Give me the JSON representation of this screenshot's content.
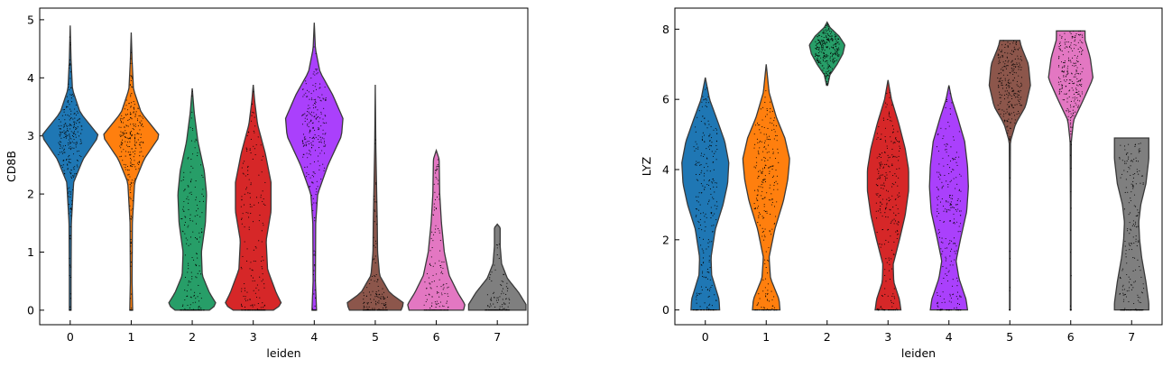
{
  "chart_data": [
    {
      "type": "violin",
      "xlabel": "leiden",
      "ylabel": "CD8B",
      "categories": [
        "0",
        "1",
        "2",
        "3",
        "4",
        "5",
        "6",
        "7"
      ],
      "yticks": [
        "0",
        "1",
        "2",
        "3",
        "4",
        "5"
      ],
      "ylim": [
        -0.25,
        5.2
      ],
      "colors": [
        "#1f77b4",
        "#ff7f0e",
        "#279e68",
        "#d62728",
        "#aa40fc",
        "#8c564b",
        "#e377c2",
        "#7f7f7f"
      ],
      "series": [
        {
          "category": "0",
          "max": 4.9,
          "zero_fraction": 0.03,
          "density": [
            [
              0.0,
              0.03
            ],
            [
              0.5,
              0.03
            ],
            [
              1.5,
              0.04
            ],
            [
              2.2,
              0.12
            ],
            [
              2.6,
              0.45
            ],
            [
              3.0,
              1.0
            ],
            [
              3.4,
              0.35
            ],
            [
              3.8,
              0.08
            ],
            [
              4.3,
              0.03
            ],
            [
              4.9,
              0.0
            ]
          ]
        },
        {
          "category": "1",
          "max": 4.78,
          "zero_fraction": 0.04,
          "density": [
            [
              0.0,
              0.05
            ],
            [
              0.5,
              0.03
            ],
            [
              1.5,
              0.04
            ],
            [
              2.2,
              0.12
            ],
            [
              2.6,
              0.45
            ],
            [
              3.0,
              1.0
            ],
            [
              3.4,
              0.35
            ],
            [
              3.8,
              0.08
            ],
            [
              4.3,
              0.03
            ],
            [
              4.78,
              0.0
            ]
          ]
        },
        {
          "category": "2",
          "max": 3.82,
          "zero_fraction": 0.45,
          "density": [
            [
              0.0,
              0.6
            ],
            [
              0.1,
              0.85
            ],
            [
              0.3,
              0.6
            ],
            [
              0.6,
              0.35
            ],
            [
              1.0,
              0.32
            ],
            [
              1.5,
              0.46
            ],
            [
              2.0,
              0.5
            ],
            [
              2.4,
              0.42
            ],
            [
              2.9,
              0.2
            ],
            [
              3.4,
              0.07
            ],
            [
              3.82,
              0.0
            ]
          ]
        },
        {
          "category": "3",
          "max": 3.88,
          "zero_fraction": 0.4,
          "density": [
            [
              0.0,
              0.7
            ],
            [
              0.1,
              1.0
            ],
            [
              0.3,
              0.8
            ],
            [
              0.7,
              0.5
            ],
            [
              1.2,
              0.45
            ],
            [
              1.7,
              0.62
            ],
            [
              2.2,
              0.62
            ],
            [
              2.7,
              0.42
            ],
            [
              3.2,
              0.15
            ],
            [
              3.6,
              0.05
            ],
            [
              3.88,
              0.0
            ]
          ]
        },
        {
          "category": "4",
          "max": 4.95,
          "zero_fraction": 0.08,
          "density": [
            [
              0.0,
              0.08
            ],
            [
              0.5,
              0.04
            ],
            [
              1.5,
              0.05
            ],
            [
              2.0,
              0.12
            ],
            [
              2.5,
              0.48
            ],
            [
              3.0,
              0.95
            ],
            [
              3.3,
              1.0
            ],
            [
              3.7,
              0.65
            ],
            [
              4.1,
              0.2
            ],
            [
              4.5,
              0.04
            ],
            [
              4.95,
              0.0
            ]
          ]
        },
        {
          "category": "5",
          "max": 3.88,
          "zero_fraction": 0.6,
          "density": [
            [
              0.0,
              0.9
            ],
            [
              0.12,
              1.0
            ],
            [
              0.3,
              0.5
            ],
            [
              0.6,
              0.15
            ],
            [
              1.0,
              0.08
            ],
            [
              1.5,
              0.07
            ],
            [
              2.0,
              0.05
            ],
            [
              2.8,
              0.02
            ],
            [
              3.88,
              0.0
            ]
          ]
        },
        {
          "category": "6",
          "max": 2.75,
          "zero_fraction": 0.5,
          "density": [
            [
              0.0,
              0.95
            ],
            [
              0.1,
              1.0
            ],
            [
              0.3,
              0.75
            ],
            [
              0.6,
              0.45
            ],
            [
              1.0,
              0.28
            ],
            [
              1.5,
              0.18
            ],
            [
              2.0,
              0.12
            ],
            [
              2.6,
              0.1
            ],
            [
              2.75,
              0.0
            ]
          ]
        },
        {
          "category": "7",
          "max": 1.48,
          "zero_fraction": 0.7,
          "density": [
            [
              0.0,
              1.0
            ],
            [
              0.1,
              1.0
            ],
            [
              0.3,
              0.75
            ],
            [
              0.55,
              0.35
            ],
            [
              0.8,
              0.15
            ],
            [
              1.1,
              0.1
            ],
            [
              1.42,
              0.1
            ],
            [
              1.48,
              0.0
            ]
          ]
        }
      ]
    },
    {
      "type": "violin",
      "xlabel": "leiden",
      "ylabel": "LYZ",
      "categories": [
        "0",
        "1",
        "2",
        "3",
        "4",
        "5",
        "6",
        "7"
      ],
      "yticks": [
        "0",
        "2",
        "4",
        "6",
        "8"
      ],
      "ylim": [
        -0.42,
        8.6
      ],
      "colors": [
        "#1f77b4",
        "#ff7f0e",
        "#279e68",
        "#d62728",
        "#aa40fc",
        "#8c564b",
        "#e377c2",
        "#7f7f7f"
      ],
      "series": [
        {
          "category": "0",
          "max": 6.62,
          "zero_fraction": 0.1,
          "density": [
            [
              0.0,
              0.5
            ],
            [
              0.3,
              0.48
            ],
            [
              1.0,
              0.22
            ],
            [
              1.5,
              0.2
            ],
            [
              2.3,
              0.35
            ],
            [
              3.0,
              0.62
            ],
            [
              3.6,
              0.78
            ],
            [
              4.2,
              0.82
            ],
            [
              4.8,
              0.68
            ],
            [
              5.4,
              0.42
            ],
            [
              6.0,
              0.15
            ],
            [
              6.62,
              0.0
            ]
          ]
        },
        {
          "category": "1",
          "max": 7.0,
          "zero_fraction": 0.1,
          "density": [
            [
              0.0,
              0.48
            ],
            [
              0.3,
              0.45
            ],
            [
              0.9,
              0.15
            ],
            [
              1.5,
              0.1
            ],
            [
              2.3,
              0.3
            ],
            [
              3.1,
              0.6
            ],
            [
              3.7,
              0.75
            ],
            [
              4.3,
              0.82
            ],
            [
              4.9,
              0.65
            ],
            [
              5.5,
              0.35
            ],
            [
              6.2,
              0.1
            ],
            [
              7.0,
              0.0
            ]
          ]
        },
        {
          "category": "2",
          "min": 6.4,
          "max": 8.2,
          "zero_fraction": 0.0,
          "density": [
            [
              6.4,
              0.02
            ],
            [
              6.7,
              0.1
            ],
            [
              7.0,
              0.35
            ],
            [
              7.3,
              0.55
            ],
            [
              7.55,
              0.62
            ],
            [
              7.8,
              0.42
            ],
            [
              8.05,
              0.1
            ],
            [
              8.2,
              0.0
            ]
          ]
        },
        {
          "category": "3",
          "max": 6.55,
          "zero_fraction": 0.08,
          "density": [
            [
              0.0,
              0.45
            ],
            [
              0.3,
              0.4
            ],
            [
              0.8,
              0.2
            ],
            [
              1.3,
              0.18
            ],
            [
              2.0,
              0.4
            ],
            [
              2.7,
              0.6
            ],
            [
              3.4,
              0.72
            ],
            [
              4.0,
              0.72
            ],
            [
              4.6,
              0.6
            ],
            [
              5.3,
              0.38
            ],
            [
              6.0,
              0.12
            ],
            [
              6.55,
              0.0
            ]
          ]
        },
        {
          "category": "4",
          "max": 6.4,
          "zero_fraction": 0.12,
          "density": [
            [
              0.0,
              0.65
            ],
            [
              0.3,
              0.6
            ],
            [
              0.9,
              0.35
            ],
            [
              1.4,
              0.25
            ],
            [
              2.0,
              0.4
            ],
            [
              2.8,
              0.62
            ],
            [
              3.5,
              0.68
            ],
            [
              4.1,
              0.65
            ],
            [
              4.8,
              0.55
            ],
            [
              5.5,
              0.3
            ],
            [
              6.0,
              0.1
            ],
            [
              6.4,
              0.0
            ]
          ]
        },
        {
          "category": "5",
          "max": 7.68,
          "zero_fraction": 0.01,
          "density": [
            [
              0.0,
              0.01
            ],
            [
              1.0,
              0.01
            ],
            [
              3.0,
              0.01
            ],
            [
              4.8,
              0.02
            ],
            [
              5.3,
              0.2
            ],
            [
              5.8,
              0.55
            ],
            [
              6.4,
              0.72
            ],
            [
              7.0,
              0.65
            ],
            [
              7.5,
              0.4
            ],
            [
              7.68,
              0.35
            ]
          ]
        },
        {
          "category": "6",
          "max": 7.95,
          "zero_fraction": 0.03,
          "density": [
            [
              0.0,
              0.01
            ],
            [
              1.0,
              0.01
            ],
            [
              3.0,
              0.01
            ],
            [
              4.8,
              0.02
            ],
            [
              5.4,
              0.1
            ],
            [
              6.0,
              0.45
            ],
            [
              6.6,
              0.78
            ],
            [
              7.2,
              0.68
            ],
            [
              7.7,
              0.5
            ],
            [
              7.95,
              0.5
            ]
          ]
        },
        {
          "category": "7",
          "max": 4.9,
          "zero_fraction": 0.3,
          "density": [
            [
              0.0,
              0.6
            ],
            [
              0.2,
              0.6
            ],
            [
              0.8,
              0.5
            ],
            [
              1.5,
              0.35
            ],
            [
              2.0,
              0.28
            ],
            [
              2.5,
              0.25
            ],
            [
              3.0,
              0.32
            ],
            [
              3.6,
              0.5
            ],
            [
              4.3,
              0.6
            ],
            [
              4.9,
              0.6
            ]
          ]
        }
      ]
    }
  ]
}
